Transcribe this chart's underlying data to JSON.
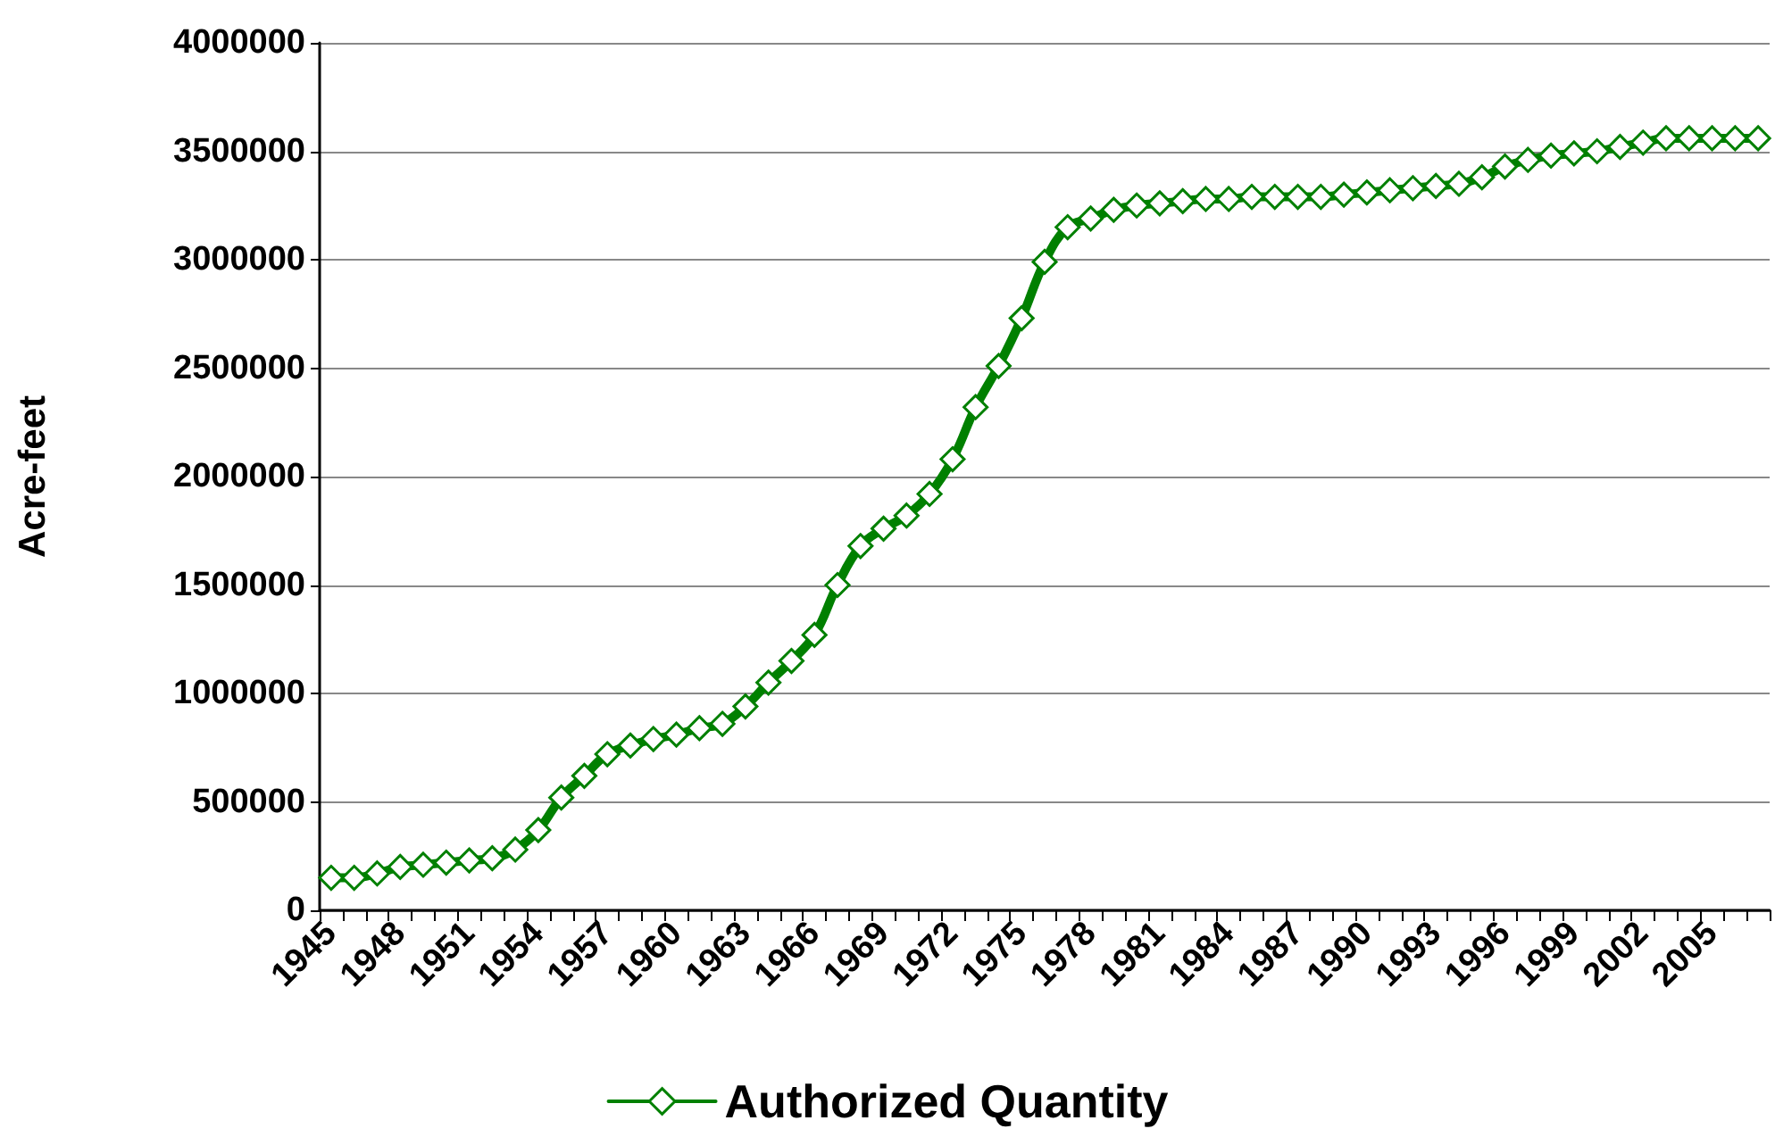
{
  "chart_data": {
    "type": "line",
    "ylabel": "Acre-feet",
    "categories": [
      "1945",
      null,
      null,
      "1948",
      null,
      null,
      "1951",
      null,
      null,
      "1954",
      null,
      null,
      "1957",
      null,
      null,
      "1960",
      null,
      null,
      "1963",
      null,
      null,
      "1966",
      null,
      null,
      "1969",
      null,
      null,
      "1972",
      null,
      null,
      "1975",
      null,
      null,
      "1978",
      null,
      null,
      "1981",
      null,
      null,
      "1984",
      null,
      null,
      "1987",
      null,
      null,
      "1990",
      null,
      null,
      "1993",
      null,
      null,
      "1996",
      null,
      null,
      "1999",
      null,
      null,
      "2002",
      null,
      null,
      "2005",
      null,
      null
    ],
    "series": [
      {
        "name": "Authorized Quantity",
        "color": "#008000",
        "values": [
          150000,
          150000,
          170000,
          200000,
          210000,
          220000,
          230000,
          240000,
          280000,
          370000,
          520000,
          620000,
          720000,
          760000,
          790000,
          810000,
          840000,
          860000,
          940000,
          1050000,
          1150000,
          1270000,
          1500000,
          1680000,
          1760000,
          1820000,
          1920000,
          2080000,
          2320000,
          2510000,
          2730000,
          2990000,
          3150000,
          3190000,
          3230000,
          3250000,
          3260000,
          3270000,
          3280000,
          3280000,
          3290000,
          3290000,
          3290000,
          3290000,
          3300000,
          3310000,
          3320000,
          3330000,
          3340000,
          3350000,
          3380000,
          3430000,
          3460000,
          3480000,
          3490000,
          3500000,
          3520000,
          3540000,
          3560000,
          3560000,
          3560000,
          3560000,
          3560000
        ]
      }
    ],
    "ylim": [
      0,
      4000000
    ],
    "yticks": [
      0,
      500000,
      1000000,
      1500000,
      2000000,
      2500000,
      3000000,
      3500000,
      4000000
    ],
    "grid": "y",
    "legend": "bottom",
    "marker": "diamond",
    "line_style": "solid"
  }
}
